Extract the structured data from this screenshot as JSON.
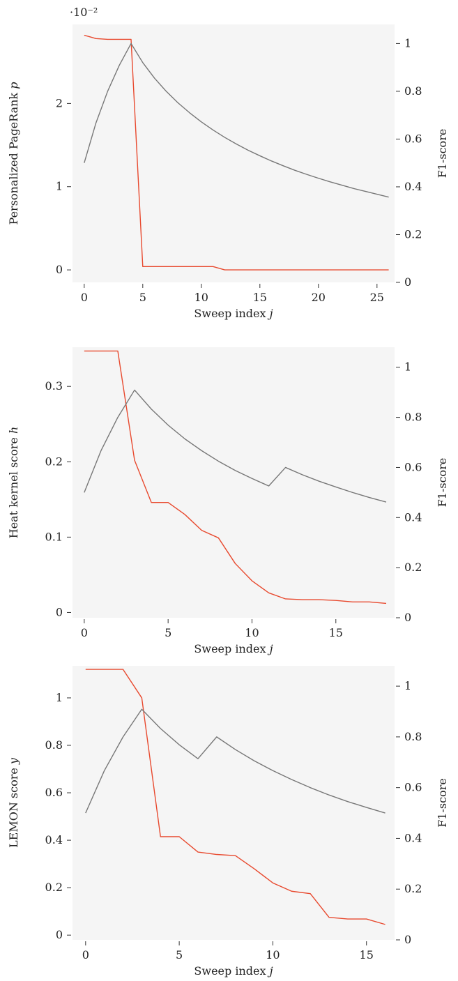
{
  "chart_data": [
    {
      "type": "line",
      "xlabel": "Sweep index j",
      "ylabel": "Personalized PageRank p",
      "y2label": "F1-score",
      "exponent_label": "·10⁻²",
      "xlim": [
        -1,
        26.5
      ],
      "ylim": [
        -0.0015,
        0.0295
      ],
      "y2lim": [
        0,
        1.08
      ],
      "xticks": [
        0,
        5,
        10,
        15,
        20,
        25
      ],
      "yticks": [
        0,
        0.01,
        0.02
      ],
      "ytick_labels": [
        "0",
        "1",
        "2"
      ],
      "y2ticks": [
        0,
        0.2,
        0.4,
        0.6,
        0.8,
        1
      ],
      "y2tick_labels": [
        "0",
        "0.2",
        "0.4",
        "0.6",
        "0.8",
        "1"
      ],
      "series": [
        {
          "axis": "left",
          "color": "#e8492e",
          "x": [
            0,
            1,
            2,
            3,
            4,
            5,
            6,
            7,
            8,
            9,
            10,
            11,
            12,
            13,
            14,
            15,
            16,
            17,
            18,
            19,
            20,
            21,
            22,
            23,
            24,
            25,
            26
          ],
          "values": [
            0.0282,
            0.0278,
            0.0277,
            0.0277,
            0.0277,
            0.0004,
            0.0004,
            0.0004,
            0.0004,
            0.0004,
            0.0004,
            0.0004,
            0.0,
            0.0,
            0.0,
            0.0,
            0.0,
            0.0,
            0.0,
            0.0,
            0.0,
            0.0,
            0.0,
            0.0,
            0.0,
            0.0,
            0.0
          ]
        },
        {
          "axis": "right",
          "color": "#777777",
          "x": [
            0,
            1,
            2,
            3,
            4,
            5,
            6,
            7,
            8,
            9,
            10,
            11,
            12,
            13,
            14,
            15,
            16,
            17,
            18,
            19,
            20,
            21,
            22,
            23,
            24,
            25,
            26
          ],
          "values": [
            0.5,
            0.667,
            0.8,
            0.909,
            1.0,
            0.92,
            0.855,
            0.8,
            0.752,
            0.71,
            0.672,
            0.638,
            0.607,
            0.579,
            0.553,
            0.53,
            0.508,
            0.488,
            0.469,
            0.452,
            0.436,
            0.421,
            0.407,
            0.393,
            0.381,
            0.369,
            0.357
          ]
        }
      ]
    },
    {
      "type": "line",
      "xlabel": "Sweep index j",
      "ylabel": "Heat kernel score h",
      "y2label": "F1-score",
      "xlim": [
        -0.7,
        18.5
      ],
      "ylim": [
        -0.007,
        0.352
      ],
      "y2lim": [
        0,
        1.08
      ],
      "xticks": [
        0,
        5,
        10,
        15
      ],
      "yticks": [
        0,
        0.1,
        0.2,
        0.3
      ],
      "ytick_labels": [
        "0",
        "0.1",
        "0.2",
        "0.3"
      ],
      "y2ticks": [
        0,
        0.2,
        0.4,
        0.6,
        0.8,
        1
      ],
      "y2tick_labels": [
        "0",
        "0.2",
        "0.4",
        "0.6",
        "0.8",
        "1"
      ],
      "series": [
        {
          "axis": "left",
          "color": "#e8492e",
          "x": [
            0,
            1,
            2,
            3,
            4,
            5,
            6,
            7,
            8,
            9,
            10,
            11,
            12,
            13,
            14,
            15,
            16,
            17,
            18
          ],
          "values": [
            0.347,
            0.347,
            0.347,
            0.202,
            0.146,
            0.146,
            0.13,
            0.109,
            0.099,
            0.065,
            0.042,
            0.026,
            0.018,
            0.017,
            0.017,
            0.016,
            0.014,
            0.014,
            0.012
          ]
        },
        {
          "axis": "right",
          "color": "#777777",
          "x": [
            0,
            1,
            2,
            3,
            4,
            5,
            6,
            7,
            8,
            9,
            10,
            11,
            12,
            13,
            14,
            15,
            16,
            17,
            18
          ],
          "values": [
            0.5,
            0.667,
            0.8,
            0.909,
            0.833,
            0.769,
            0.714,
            0.667,
            0.625,
            0.588,
            0.556,
            0.526,
            0.6,
            0.571,
            0.545,
            0.522,
            0.5,
            0.48,
            0.462
          ]
        }
      ]
    },
    {
      "type": "line",
      "xlabel": "Sweep index j",
      "ylabel": "LEMON score y",
      "y2label": "F1-score",
      "xlim": [
        -0.7,
        16.5
      ],
      "ylim": [
        -0.02,
        1.135
      ],
      "y2lim": [
        0,
        1.08
      ],
      "xticks": [
        0,
        5,
        10,
        15
      ],
      "yticks": [
        0,
        0.2,
        0.4,
        0.6,
        0.8,
        1
      ],
      "ytick_labels": [
        "0",
        "0.2",
        "0.4",
        "0.6",
        "0.8",
        "1"
      ],
      "y2ticks": [
        0,
        0.2,
        0.4,
        0.6,
        0.8,
        1
      ],
      "y2tick_labels": [
        "0",
        "0.2",
        "0.4",
        "0.6",
        "0.8",
        "1"
      ],
      "series": [
        {
          "axis": "left",
          "color": "#e8492e",
          "x": [
            0,
            1,
            2,
            3,
            4,
            5,
            6,
            7,
            8,
            9,
            10,
            11,
            12,
            13,
            14,
            15,
            16
          ],
          "values": [
            1.12,
            1.12,
            1.12,
            1.0,
            0.415,
            0.415,
            0.35,
            0.34,
            0.335,
            0.28,
            0.22,
            0.185,
            0.175,
            0.075,
            0.068,
            0.068,
            0.045
          ]
        },
        {
          "axis": "right",
          "color": "#777777",
          "x": [
            0,
            1,
            2,
            3,
            4,
            5,
            6,
            7,
            8,
            9,
            10,
            11,
            12,
            13,
            14,
            15,
            16
          ],
          "values": [
            0.5,
            0.667,
            0.8,
            0.909,
            0.833,
            0.769,
            0.714,
            0.8,
            0.75,
            0.706,
            0.667,
            0.632,
            0.6,
            0.571,
            0.545,
            0.522,
            0.5
          ]
        }
      ]
    }
  ]
}
